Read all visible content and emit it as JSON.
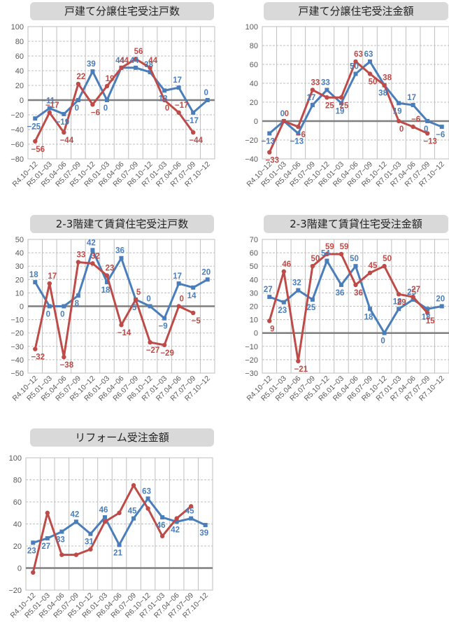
{
  "colors": {
    "series_a": "#4a7ebb",
    "series_b": "#be4b48",
    "grid": "#bfbfbf",
    "zero": "#7f7f7f",
    "axis_text": "#595959"
  },
  "categories": [
    "R4.10-12",
    "R5.01-03",
    "R5.04-06",
    "R5.07-09",
    "R5.10-12",
    "R6.01-03",
    "R6.04-06",
    "R6.07-09",
    "R6.10-12",
    "R7.01-03",
    "R7.04-06",
    "R7.07-09",
    "R7.10-12"
  ],
  "chart_data": [
    {
      "id": "c1",
      "type": "line",
      "title": "戸建て分譲住宅受注戸数",
      "xlabel": "",
      "ylabel": "",
      "ylim": [
        -80,
        100
      ],
      "ystep": 20,
      "categories": [
        "R4.10-12",
        "R5.01-03",
        "R5.04-06",
        "R5.07-09",
        "R5.10-12",
        "R6.01-03",
        "R6.04-06",
        "R6.07-09",
        "R6.10-12",
        "R7.01-03",
        "R7.04-06",
        "R7.07-09",
        "R7.10-12"
      ],
      "series": [
        {
          "name": "blue",
          "color": "#4a7ebb",
          "marker": "square",
          "values": [
            -25,
            -11,
            -19,
            0,
            39,
            0,
            44,
            44,
            38,
            13,
            17,
            -17,
            0
          ]
        },
        {
          "name": "red",
          "color": "#be4b48",
          "marker": "circle",
          "values": [
            -56,
            -17,
            -44,
            22,
            -6,
            19,
            44,
            56,
            44,
            0,
            -17,
            -44
          ]
        }
      ],
      "grid": true,
      "legend": "none"
    },
    {
      "id": "c2",
      "type": "line",
      "title": "戸建て分譲住宅受注金額",
      "xlabel": "",
      "ylabel": "",
      "ylim": [
        -40,
        100
      ],
      "ystep": 20,
      "categories": [
        "R4.10-12",
        "R5.01-03",
        "R5.04-06",
        "R5.07-09",
        "R5.10-12",
        "R6.01-03",
        "R6.04-06",
        "R6.07-09",
        "R6.10-12",
        "R7.01-03",
        "R7.04-06",
        "R7.07-09",
        "R7.10-12"
      ],
      "series": [
        {
          "name": "blue",
          "color": "#4a7ebb",
          "marker": "square",
          "values": [
            -13,
            0,
            -13,
            17,
            33,
            19,
            50,
            63,
            38,
            19,
            17,
            0,
            -6
          ]
        },
        {
          "name": "red",
          "color": "#be4b48",
          "marker": "circle",
          "values": [
            -33,
            0,
            -6,
            33,
            25,
            25,
            63,
            50,
            38,
            0,
            -6,
            -13
          ]
        }
      ],
      "grid": true,
      "legend": "none"
    },
    {
      "id": "c3",
      "type": "line",
      "title": "2-3階建て賃貸住宅受注戸数",
      "xlabel": "",
      "ylabel": "",
      "ylim": [
        -50,
        50
      ],
      "ystep": 10,
      "categories": [
        "R4.10-12",
        "R5.01-03",
        "R5.04-06",
        "R5.07-09",
        "R5.10-12",
        "R6.01-03",
        "R6.04-06",
        "R6.07-09",
        "R6.10-12",
        "R7.01-03",
        "R7.04-06",
        "R7.07-09",
        "R7.10-12"
      ],
      "series": [
        {
          "name": "blue",
          "color": "#4a7ebb",
          "marker": "square",
          "values": [
            18,
            0,
            0,
            8,
            42,
            18,
            36,
            5,
            0,
            -9,
            17,
            14,
            20
          ]
        },
        {
          "name": "red",
          "color": "#be4b48",
          "marker": "circle",
          "values": [
            -32,
            17,
            -38,
            33,
            32,
            23,
            -14,
            5,
            -27,
            -29,
            0,
            -5
          ]
        }
      ],
      "grid": true,
      "legend": "none"
    },
    {
      "id": "c4",
      "type": "line",
      "title": "2-3階建て賃貸住宅受注金額",
      "xlabel": "",
      "ylabel": "",
      "ylim": [
        -30,
        70
      ],
      "ystep": 10,
      "categories": [
        "R4.10-12",
        "R5.01-03",
        "R5.04-06",
        "R5.07-09",
        "R5.10-12",
        "R6.01-03",
        "R6.04-06",
        "R6.07-09",
        "R6.10-12",
        "R7.01-03",
        "R7.04-06",
        "R7.07-09",
        "R7.10-12"
      ],
      "series": [
        {
          "name": "blue",
          "color": "#4a7ebb",
          "marker": "square",
          "values": [
            27,
            23,
            32,
            25,
            54,
            36,
            50,
            18,
            0,
            18,
            25,
            18,
            20
          ]
        },
        {
          "name": "red",
          "color": "#be4b48",
          "marker": "circle",
          "values": [
            9,
            46,
            -21,
            50,
            59,
            59,
            36,
            45,
            50,
            29,
            27,
            15
          ]
        }
      ],
      "grid": true,
      "legend": "none"
    },
    {
      "id": "c5",
      "type": "line",
      "title": "リフォーム受注金額",
      "xlabel": "",
      "ylabel": "",
      "ylim": [
        -20,
        100
      ],
      "ystep": 20,
      "categories": [
        "R4.10-12",
        "R5.01-03",
        "R5.04-06",
        "R5.07-09",
        "R5.10-12",
        "R6.01-03",
        "R6.04-06",
        "R6.07-09",
        "R6.10-12",
        "R7.01-03",
        "R7.04-06",
        "R7.07-09",
        "R7.10-12"
      ],
      "series": [
        {
          "name": "blue",
          "color": "#4a7ebb",
          "marker": "square",
          "values": [
            23,
            27,
            33,
            42,
            31,
            46,
            21,
            45,
            63,
            46,
            42,
            45,
            39
          ]
        },
        {
          "name": "red",
          "color": "#be4b48",
          "marker": "circle",
          "labels": false,
          "values": [
            -4,
            50,
            12,
            12,
            17,
            42,
            50,
            75,
            54,
            29,
            45,
            56
          ]
        }
      ],
      "grid": true,
      "legend": "none"
    }
  ]
}
